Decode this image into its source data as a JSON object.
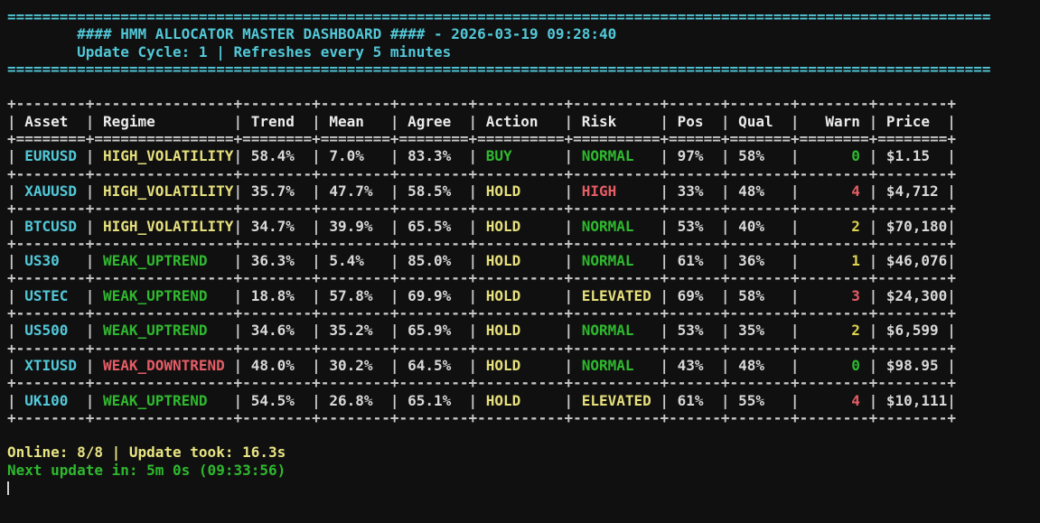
{
  "palette": {
    "bg": "#101010",
    "cyan": "#52c8d8",
    "green": "#2fb92f",
    "yellow": "#e6e07c",
    "gold": "#ded24e",
    "red": "#e65d66",
    "white": "#d9d9d9",
    "header": "#ebebeb",
    "border": "#c9c9c9",
    "footer_yellow": "#e9e584",
    "cursor": "#cfcfcf"
  },
  "banner": {
    "separator": {
      "glyph": "=",
      "count": 113
    },
    "title": "#### HMM ALLOCATOR MASTER DASHBOARD #### - 2026-03-19 09:28:40",
    "subtitle": "Update Cycle: 1 | Refreshes every 5 minutes"
  },
  "table": {
    "columns": [
      {
        "key": "asset",
        "label": "Asset",
        "width": 8,
        "align": "left"
      },
      {
        "key": "regime",
        "label": "Regime",
        "width": 16,
        "align": "left"
      },
      {
        "key": "trend",
        "label": "Trend",
        "width": 8,
        "align": "left"
      },
      {
        "key": "mean",
        "label": "Mean",
        "width": 8,
        "align": "left"
      },
      {
        "key": "agree",
        "label": "Agree",
        "width": 8,
        "align": "left"
      },
      {
        "key": "action",
        "label": "Action",
        "width": 10,
        "align": "left"
      },
      {
        "key": "risk",
        "label": "Risk",
        "width": 10,
        "align": "left"
      },
      {
        "key": "pos",
        "label": "Pos",
        "width": 6,
        "align": "left"
      },
      {
        "key": "qual",
        "label": "Qual",
        "width": 7,
        "align": "left"
      },
      {
        "key": "warn",
        "label": "Warn",
        "width": 8,
        "align": "right"
      },
      {
        "key": "price",
        "label": "Price",
        "width": 8,
        "align": "left"
      }
    ],
    "rows": [
      {
        "cells": [
          {
            "t": "EURUSD",
            "c": "cyan"
          },
          {
            "t": "HIGH_VOLATILITY",
            "c": "yellow"
          },
          {
            "t": "58.4%",
            "c": "white"
          },
          {
            "t": "7.0%",
            "c": "white"
          },
          {
            "t": "83.3%",
            "c": "white"
          },
          {
            "t": "BUY",
            "c": "green"
          },
          {
            "t": "NORMAL",
            "c": "green"
          },
          {
            "t": "97%",
            "c": "white"
          },
          {
            "t": "58%",
            "c": "white"
          },
          {
            "t": "0",
            "c": "green"
          },
          {
            "t": "$1.15",
            "c": "white"
          }
        ]
      },
      {
        "cells": [
          {
            "t": "XAUUSD",
            "c": "cyan"
          },
          {
            "t": "HIGH_VOLATILITY",
            "c": "yellow"
          },
          {
            "t": "35.7%",
            "c": "white"
          },
          {
            "t": "47.7%",
            "c": "white"
          },
          {
            "t": "58.5%",
            "c": "white"
          },
          {
            "t": "HOLD",
            "c": "yellow"
          },
          {
            "t": "HIGH",
            "c": "red"
          },
          {
            "t": "33%",
            "c": "white"
          },
          {
            "t": "48%",
            "c": "white"
          },
          {
            "t": "4",
            "c": "red"
          },
          {
            "t": "$4,712",
            "c": "white"
          }
        ]
      },
      {
        "cells": [
          {
            "t": "BTCUSD",
            "c": "cyan"
          },
          {
            "t": "HIGH_VOLATILITY",
            "c": "yellow"
          },
          {
            "t": "34.7%",
            "c": "white"
          },
          {
            "t": "39.9%",
            "c": "white"
          },
          {
            "t": "65.5%",
            "c": "white"
          },
          {
            "t": "HOLD",
            "c": "yellow"
          },
          {
            "t": "NORMAL",
            "c": "green"
          },
          {
            "t": "53%",
            "c": "white"
          },
          {
            "t": "40%",
            "c": "white"
          },
          {
            "t": "2",
            "c": "gold"
          },
          {
            "t": "$70,180",
            "c": "white"
          }
        ]
      },
      {
        "cells": [
          {
            "t": "US30",
            "c": "cyan"
          },
          {
            "t": "WEAK_UPTREND",
            "c": "green"
          },
          {
            "t": "36.3%",
            "c": "white"
          },
          {
            "t": "5.4%",
            "c": "white"
          },
          {
            "t": "85.0%",
            "c": "white"
          },
          {
            "t": "HOLD",
            "c": "yellow"
          },
          {
            "t": "NORMAL",
            "c": "green"
          },
          {
            "t": "61%",
            "c": "white"
          },
          {
            "t": "36%",
            "c": "white"
          },
          {
            "t": "1",
            "c": "gold"
          },
          {
            "t": "$46,076",
            "c": "white"
          }
        ]
      },
      {
        "cells": [
          {
            "t": "USTEC",
            "c": "cyan"
          },
          {
            "t": "WEAK_UPTREND",
            "c": "green"
          },
          {
            "t": "18.8%",
            "c": "white"
          },
          {
            "t": "57.8%",
            "c": "white"
          },
          {
            "t": "69.9%",
            "c": "white"
          },
          {
            "t": "HOLD",
            "c": "yellow"
          },
          {
            "t": "ELEVATED",
            "c": "yellow"
          },
          {
            "t": "69%",
            "c": "white"
          },
          {
            "t": "58%",
            "c": "white"
          },
          {
            "t": "3",
            "c": "red"
          },
          {
            "t": "$24,300",
            "c": "white"
          }
        ]
      },
      {
        "cells": [
          {
            "t": "US500",
            "c": "cyan"
          },
          {
            "t": "WEAK_UPTREND",
            "c": "green"
          },
          {
            "t": "34.6%",
            "c": "white"
          },
          {
            "t": "35.2%",
            "c": "white"
          },
          {
            "t": "65.9%",
            "c": "white"
          },
          {
            "t": "HOLD",
            "c": "yellow"
          },
          {
            "t": "NORMAL",
            "c": "green"
          },
          {
            "t": "53%",
            "c": "white"
          },
          {
            "t": "35%",
            "c": "white"
          },
          {
            "t": "2",
            "c": "gold"
          },
          {
            "t": "$6,599",
            "c": "white"
          }
        ]
      },
      {
        "cells": [
          {
            "t": "XTIUSD",
            "c": "cyan"
          },
          {
            "t": "WEAK_DOWNTREND",
            "c": "red"
          },
          {
            "t": "48.0%",
            "c": "white"
          },
          {
            "t": "30.2%",
            "c": "white"
          },
          {
            "t": "64.5%",
            "c": "white"
          },
          {
            "t": "HOLD",
            "c": "yellow"
          },
          {
            "t": "NORMAL",
            "c": "green"
          },
          {
            "t": "43%",
            "c": "white"
          },
          {
            "t": "48%",
            "c": "white"
          },
          {
            "t": "0",
            "c": "green"
          },
          {
            "t": "$98.95",
            "c": "white"
          }
        ]
      },
      {
        "cells": [
          {
            "t": "UK100",
            "c": "cyan"
          },
          {
            "t": "WEAK_UPTREND",
            "c": "green"
          },
          {
            "t": "54.5%",
            "c": "white"
          },
          {
            "t": "26.8%",
            "c": "white"
          },
          {
            "t": "65.1%",
            "c": "white"
          },
          {
            "t": "HOLD",
            "c": "yellow"
          },
          {
            "t": "ELEVATED",
            "c": "yellow"
          },
          {
            "t": "61%",
            "c": "white"
          },
          {
            "t": "55%",
            "c": "white"
          },
          {
            "t": "4",
            "c": "red"
          },
          {
            "t": "$10,111",
            "c": "white"
          }
        ]
      }
    ]
  },
  "footer": {
    "status_line": "Online: 8/8 | Update took: 16.3s",
    "next_update_line": "Next update in: 5m 0s (09:33:56)"
  }
}
